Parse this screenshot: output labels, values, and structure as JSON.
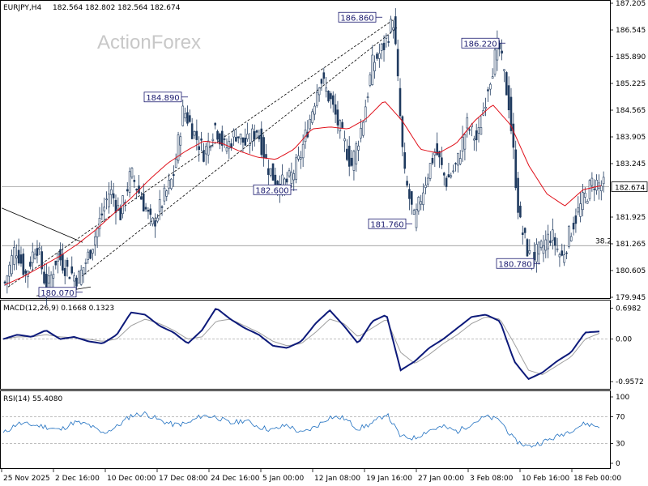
{
  "header": {
    "symbol": "EURJPY,H4",
    "ohlc": "182.564 182.802 182.564 182.674",
    "watermark": "ActionForex"
  },
  "colors": {
    "candles": "#1f3a5f",
    "ma": "#e0101a",
    "macd": "#0d1a7a",
    "signal": "#a0a0a0",
    "rsi": "#1e6fc0",
    "grid": "#c8c8c8",
    "label_border": "#1a1a6e"
  },
  "chart_data": [
    {
      "type": "candlestick",
      "title": "EURJPY,H4",
      "ylim": [
        179.945,
        187.205
      ],
      "y_ticks": [
        "187.205",
        "186.545",
        "185.890",
        "185.225",
        "184.565",
        "183.905",
        "183.245",
        "182.674",
        "181.925",
        "181.265",
        "180.605",
        "179.945"
      ],
      "x_ticks": [
        "25 Nov 2025",
        "2 Dec 16:00",
        "10 Dec 00:00",
        "17 Dec 08:00",
        "24 Dec 16:00",
        "5 Jan 00:00",
        "12 Jan 08:00",
        "19 Jan 16:00",
        "27 Jan 00:00",
        "3 Feb 08:00",
        "10 Feb 16:00",
        "18 Feb 00:00"
      ],
      "last_price": "182.674",
      "fib_level": {
        "label": "38.2",
        "value": 181.22
      },
      "annotations": [
        {
          "text": "186.860",
          "value": 186.86
        },
        {
          "text": "186.220",
          "value": 186.22
        },
        {
          "text": "184.890",
          "value": 184.89
        },
        {
          "text": "182.600",
          "value": 182.6
        },
        {
          "text": "181.760",
          "value": 181.76
        },
        {
          "text": "180.780",
          "value": 180.78
        },
        {
          "text": "180.070",
          "value": 180.07
        }
      ],
      "close_path": [
        180.3,
        181.2,
        180.5,
        181.3,
        180.1,
        181.0,
        180.6,
        180.4,
        181.0,
        181.8,
        182.6,
        182.0,
        183.0,
        182.4,
        181.7,
        182.3,
        182.9,
        184.6,
        184.0,
        183.5,
        184.2,
        183.6,
        184.0,
        183.7,
        184.1,
        183.2,
        182.7,
        182.8,
        183.3,
        184.3,
        185.4,
        184.8,
        184.0,
        183.2,
        184.2,
        185.7,
        186.1,
        186.8,
        183.0,
        181.8,
        182.8,
        183.6,
        182.8,
        183.2,
        184.2,
        183.8,
        185.2,
        186.2,
        184.7,
        181.8,
        180.9,
        181.1,
        181.5,
        180.9,
        181.7,
        182.3,
        182.8,
        182.674
      ],
      "series": [
        {
          "name": "MA",
          "values": [
            180.25,
            180.45,
            180.7,
            180.95,
            181.25,
            181.6,
            182.0,
            182.4,
            182.85,
            183.25,
            183.55,
            183.8,
            183.75,
            183.55,
            183.4,
            183.35,
            183.6,
            184.1,
            184.15,
            184.1,
            184.35,
            184.8,
            184.3,
            183.6,
            183.5,
            183.75,
            184.3,
            184.7,
            184.2,
            183.2,
            182.5,
            182.2,
            182.6,
            182.7
          ]
        }
      ]
    },
    {
      "type": "line",
      "title": "MACD(12,26,9) 0.1668 0.1323",
      "ylim": [
        -1.1,
        0.85
      ],
      "y_ticks": [
        "0.6982",
        "0.00",
        "-0.9572"
      ],
      "series": [
        {
          "name": "MACD",
          "values": [
            0.0,
            0.1,
            0.05,
            0.2,
            0.0,
            0.05,
            -0.05,
            -0.1,
            0.1,
            0.6,
            0.55,
            0.3,
            0.15,
            -0.1,
            0.2,
            0.7,
            0.45,
            0.25,
            0.1,
            -0.15,
            -0.2,
            -0.05,
            0.35,
            0.65,
            0.3,
            -0.1,
            0.4,
            0.55,
            -0.7,
            -0.5,
            -0.2,
            0.0,
            0.25,
            0.5,
            0.55,
            0.4,
            -0.5,
            -0.9,
            -0.75,
            -0.5,
            -0.3,
            0.15,
            0.17
          ]
        },
        {
          "name": "Signal",
          "values": [
            0.0,
            0.05,
            0.05,
            0.1,
            0.05,
            0.03,
            0.0,
            -0.05,
            0.0,
            0.3,
            0.45,
            0.35,
            0.2,
            0.0,
            0.05,
            0.4,
            0.45,
            0.3,
            0.15,
            -0.05,
            -0.15,
            -0.1,
            0.15,
            0.45,
            0.35,
            0.05,
            0.25,
            0.45,
            -0.3,
            -0.55,
            -0.35,
            -0.1,
            0.1,
            0.35,
            0.5,
            0.45,
            -0.1,
            -0.7,
            -0.8,
            -0.6,
            -0.4,
            0.0,
            0.13
          ]
        }
      ]
    },
    {
      "type": "line",
      "title": "RSI(14) 55.4080",
      "ylim": [
        0,
        100
      ],
      "y_ticks": [
        "100",
        "70",
        "30",
        "0"
      ],
      "series": [
        {
          "name": "RSI",
          "values": [
            45,
            60,
            58,
            55,
            50,
            62,
            58,
            45,
            55,
            72,
            75,
            65,
            58,
            60,
            72,
            70,
            60,
            65,
            55,
            50,
            58,
            45,
            55,
            70,
            68,
            52,
            60,
            75,
            40,
            38,
            50,
            55,
            48,
            60,
            70,
            65,
            35,
            25,
            32,
            40,
            50,
            60,
            55
          ]
        }
      ]
    }
  ]
}
